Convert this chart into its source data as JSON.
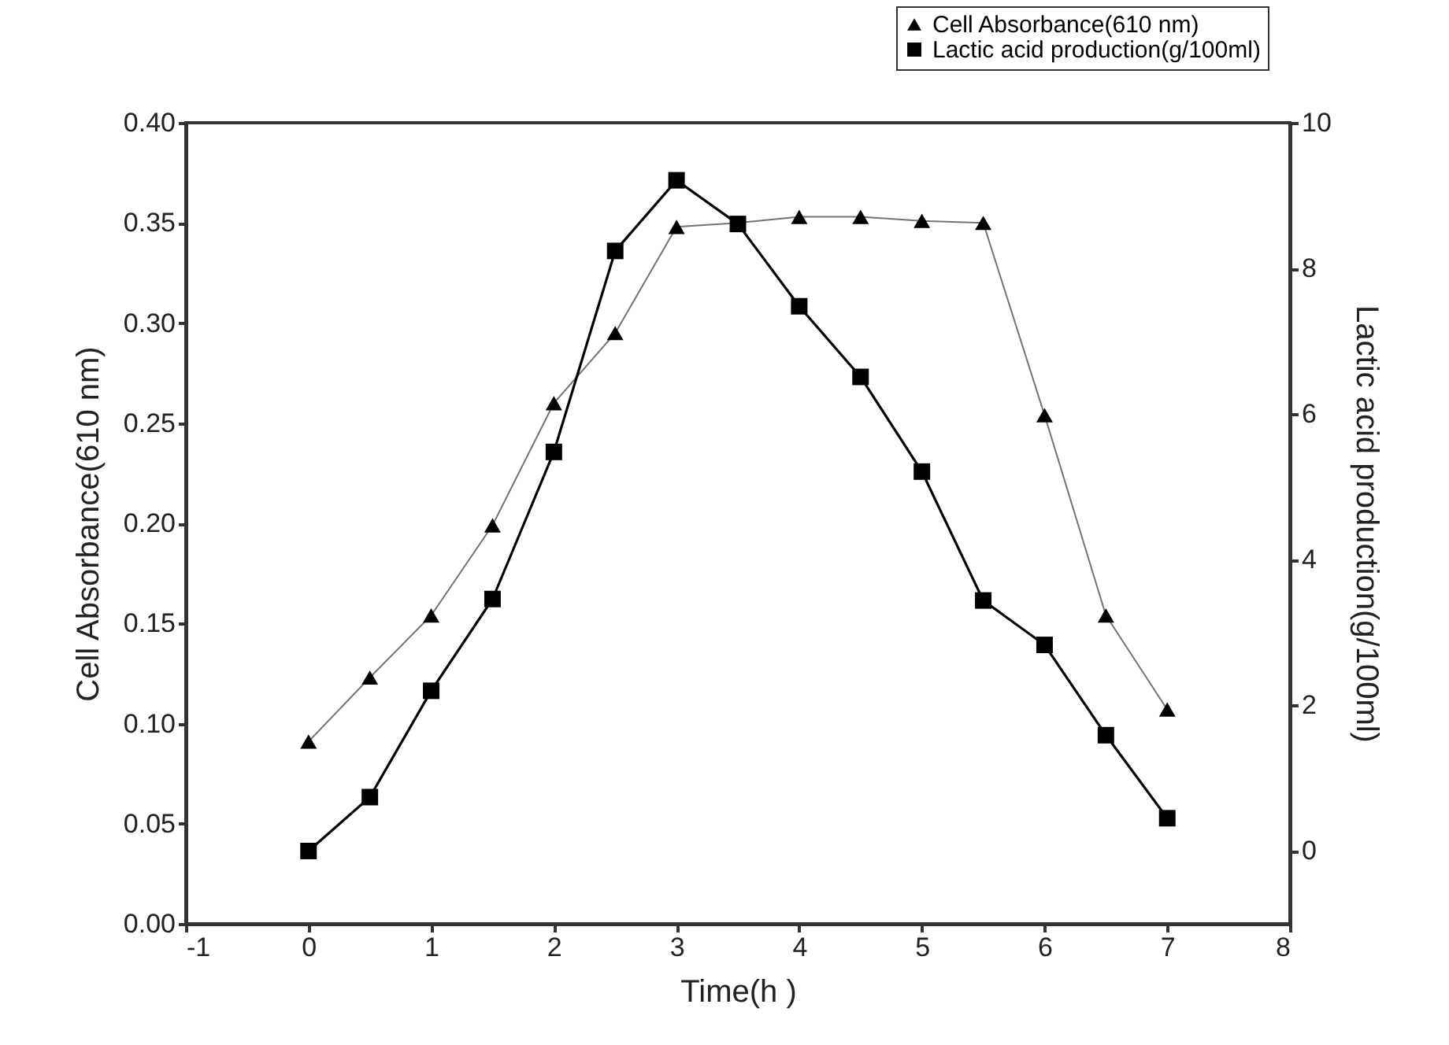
{
  "chart_data": {
    "type": "line",
    "xlabel": "Time(h  )",
    "ylabel": "Cell Absorbance(610 nm)",
    "y2label": "Lactic acid production(g/100ml)",
    "x": [
      0,
      0.5,
      1,
      1.5,
      2,
      2.5,
      3,
      3.5,
      4,
      4.5,
      5,
      5.5,
      6,
      6.5,
      7
    ],
    "series": [
      {
        "name": "Cell Absorbance(610 nm)",
        "color": "#000000",
        "marker": "triangle",
        "values": [
          0.091,
          0.123,
          0.154,
          0.199,
          0.26,
          0.295,
          0.348,
          0.35,
          0.353,
          0.353,
          0.351,
          0.35,
          0.254,
          0.154,
          0.107
        ]
      },
      {
        "name": "Lactic acid production(g/100ml)",
        "color": "#000000",
        "marker": "square",
        "axis": "y2",
        "values": [
          0,
          0.74,
          2.2,
          3.46,
          5.48,
          8.24,
          9.21,
          8.61,
          7.48,
          6.51,
          5.21,
          3.44,
          2.83,
          1.59,
          0.45
        ]
      }
    ],
    "xlim": [
      -1,
      8
    ],
    "xticks": [
      -1,
      0,
      1,
      2,
      3,
      4,
      5,
      6,
      7,
      8
    ],
    "ylim": [
      0,
      0.4
    ],
    "yticks": [
      {
        "value": 0,
        "label": "0.00"
      },
      {
        "value": 0.05,
        "label": "0.05"
      },
      {
        "value": 0.1,
        "label": "0.10"
      },
      {
        "value": 0.15,
        "label": "0.15"
      },
      {
        "value": 0.2,
        "label": "0.20"
      },
      {
        "value": 0.25,
        "label": "0.25"
      },
      {
        "value": 0.3,
        "label": "0.30"
      },
      {
        "value": 0.35,
        "label": "0.35"
      },
      {
        "value": 0.4,
        "label": "0.40"
      }
    ],
    "y2lim": [
      -1,
      10
    ],
    "y2ticks": [
      0,
      2,
      4,
      6,
      8,
      10
    ],
    "grid": false,
    "legend": "top right",
    "line_style": "solid"
  }
}
